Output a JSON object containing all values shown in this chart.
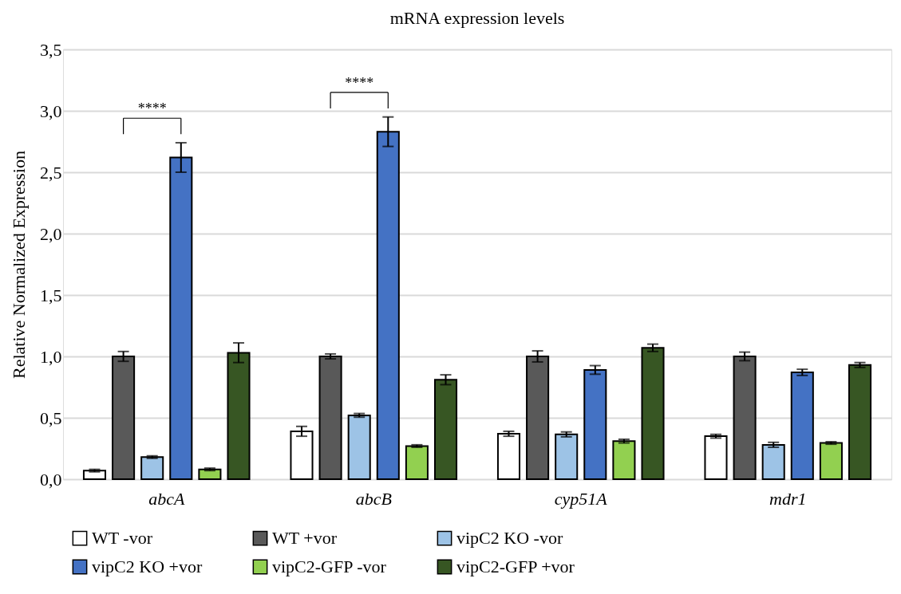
{
  "chart_data": {
    "type": "bar",
    "title": "mRNA expression levels",
    "ylabel": "Relative Normalized Expression",
    "categories": [
      "abcA",
      "abcB",
      "cyp51A",
      "mdr1"
    ],
    "series": [
      {
        "name": "WT -vor",
        "color": "#ffffff",
        "values": [
          0.07,
          0.39,
          0.37,
          0.35
        ],
        "errors": [
          0.01,
          0.04,
          0.02,
          0.015
        ]
      },
      {
        "name": "WT +vor",
        "color": "#595959",
        "values": [
          1.0,
          1.0,
          1.0,
          1.0
        ],
        "errors": [
          0.04,
          0.02,
          0.045,
          0.035
        ]
      },
      {
        "name": "vipC2 KO -vor",
        "color": "#9dc3e6",
        "values": [
          0.18,
          0.52,
          0.365,
          0.28
        ],
        "errors": [
          0.01,
          0.015,
          0.02,
          0.02
        ]
      },
      {
        "name": "vipC2 KO +vor",
        "color": "#4472c4",
        "values": [
          2.62,
          2.83,
          0.89,
          0.87
        ],
        "errors": [
          0.12,
          0.12,
          0.035,
          0.025
        ]
      },
      {
        "name": "vipC2-GFP -vor",
        "color": "#92d050",
        "values": [
          0.08,
          0.27,
          0.31,
          0.295
        ],
        "errors": [
          0.01,
          0.01,
          0.015,
          0.01
        ]
      },
      {
        "name": "vipC2-GFP +vor",
        "color": "#375623",
        "values": [
          1.03,
          0.81,
          1.07,
          0.93
        ],
        "errors": [
          0.08,
          0.04,
          0.03,
          0.02
        ]
      }
    ],
    "annotations": [
      "****",
      "****"
    ],
    "ylim": [
      0,
      3.5
    ],
    "yticks": [
      {
        "value": 0,
        "label": "0,0"
      },
      {
        "value": 0.5,
        "label": "0,5"
      },
      {
        "value": 1,
        "label": "1,0"
      },
      {
        "value": 1.5,
        "label": "1,5"
      },
      {
        "value": 2,
        "label": "2,0"
      },
      {
        "value": 2.5,
        "label": "2,5"
      },
      {
        "value": 3,
        "label": "3,0"
      },
      {
        "value": 3.5,
        "label": "3,5"
      }
    ],
    "grid": "y",
    "legend": "bottom"
  }
}
